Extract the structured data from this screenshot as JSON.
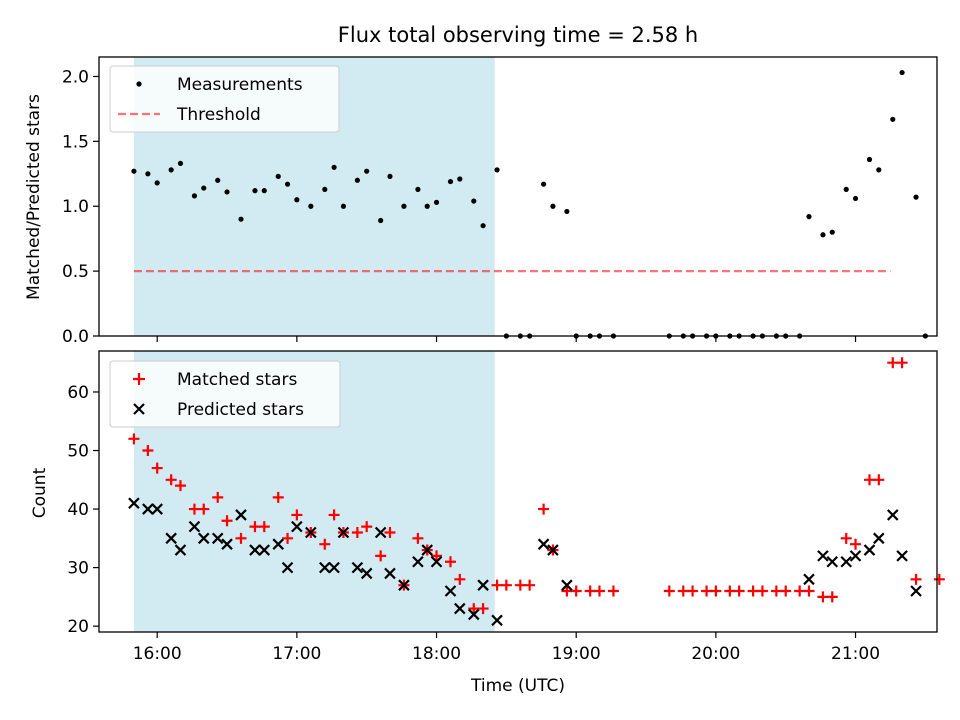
{
  "title": "Flux total observing time = 2.58 h",
  "colors": {
    "shade": "#add8e6",
    "threshold": "#ff0000",
    "matched": "#ff0000",
    "predicted": "#000000",
    "measurement": "#000000"
  },
  "chart_data": [
    {
      "type": "scatter",
      "ylabel": "Matched/Predicted stars",
      "ylim": [
        0,
        2.15
      ],
      "yticks": [
        "0.0",
        "0.5",
        "1.0",
        "1.5",
        "2.0"
      ],
      "xlim": [
        "15:35",
        "21:35"
      ],
      "shaded_interval": [
        "15:50",
        "18:25"
      ],
      "legend_placement": "upper left",
      "legend": {
        "measurements": "Measurements",
        "threshold": "Threshold"
      },
      "threshold": {
        "value": 0.5,
        "x": [
          "15:50",
          "21:15"
        ]
      },
      "series": [
        {
          "name": "Measurements",
          "points": [
            [
              "15:50",
              1.27
            ],
            [
              "15:56",
              1.25
            ],
            [
              "16:00",
              1.18
            ],
            [
              "16:06",
              1.28
            ],
            [
              "16:10",
              1.33
            ],
            [
              "16:16",
              1.08
            ],
            [
              "16:20",
              1.14
            ],
            [
              "16:26",
              1.2
            ],
            [
              "16:30",
              1.11
            ],
            [
              "16:36",
              0.9
            ],
            [
              "16:42",
              1.12
            ],
            [
              "16:46",
              1.12
            ],
            [
              "16:52",
              1.23
            ],
            [
              "16:56",
              1.17
            ],
            [
              "17:00",
              1.05
            ],
            [
              "17:06",
              1.0
            ],
            [
              "17:12",
              1.13
            ],
            [
              "17:16",
              1.3
            ],
            [
              "17:20",
              1.0
            ],
            [
              "17:26",
              1.2
            ],
            [
              "17:30",
              1.27
            ],
            [
              "17:36",
              0.89
            ],
            [
              "17:40",
              1.23
            ],
            [
              "17:46",
              1.0
            ],
            [
              "17:52",
              1.13
            ],
            [
              "17:56",
              1.0
            ],
            [
              "18:00",
              1.03
            ],
            [
              "18:06",
              1.19
            ],
            [
              "18:10",
              1.21
            ],
            [
              "18:16",
              1.04
            ],
            [
              "18:20",
              0.85
            ],
            [
              "18:26",
              1.28
            ],
            [
              "18:30",
              0
            ],
            [
              "18:36",
              0
            ],
            [
              "18:40",
              0
            ],
            [
              "18:46",
              1.17
            ],
            [
              "18:50",
              1.0
            ],
            [
              "18:56",
              0.96
            ],
            [
              "19:00",
              0
            ],
            [
              "19:06",
              0
            ],
            [
              "19:10",
              0
            ],
            [
              "19:16",
              0
            ],
            [
              "19:40",
              0
            ],
            [
              "19:46",
              0
            ],
            [
              "19:50",
              0
            ],
            [
              "19:56",
              0
            ],
            [
              "20:00",
              0
            ],
            [
              "20:06",
              0
            ],
            [
              "20:10",
              0
            ],
            [
              "20:16",
              0
            ],
            [
              "20:20",
              0
            ],
            [
              "20:26",
              0
            ],
            [
              "20:30",
              0
            ],
            [
              "20:36",
              0
            ],
            [
              "20:40",
              0.92
            ],
            [
              "20:46",
              0.78
            ],
            [
              "20:50",
              0.8
            ],
            [
              "20:56",
              1.13
            ],
            [
              "21:00",
              1.06
            ],
            [
              "21:06",
              1.36
            ],
            [
              "21:10",
              1.28
            ],
            [
              "21:16",
              1.67
            ],
            [
              "21:20",
              2.03
            ],
            [
              "21:26",
              1.07
            ],
            [
              "21:30",
              0
            ]
          ]
        }
      ]
    },
    {
      "type": "scatter",
      "xlabel": "Time (UTC)",
      "ylabel": "Count",
      "ylim": [
        19,
        67
      ],
      "yticks": [
        "20",
        "30",
        "40",
        "50",
        "60"
      ],
      "xticks": [
        "16:00",
        "17:00",
        "18:00",
        "19:00",
        "20:00",
        "21:00"
      ],
      "xlim": [
        "15:35",
        "21:35"
      ],
      "shaded_interval": [
        "15:50",
        "18:25"
      ],
      "legend_placement": "upper left",
      "legend": {
        "matched": "Matched stars",
        "predicted": "Predicted stars"
      },
      "series": [
        {
          "name": "Matched stars",
          "marker": "plus",
          "points": [
            [
              "15:50",
              52
            ],
            [
              "15:56",
              50
            ],
            [
              "16:00",
              47
            ],
            [
              "16:06",
              45
            ],
            [
              "16:10",
              44
            ],
            [
              "16:16",
              40
            ],
            [
              "16:20",
              40
            ],
            [
              "16:26",
              42
            ],
            [
              "16:30",
              38
            ],
            [
              "16:36",
              35
            ],
            [
              "16:42",
              37
            ],
            [
              "16:46",
              37
            ],
            [
              "16:52",
              42
            ],
            [
              "16:56",
              35
            ],
            [
              "17:00",
              39
            ],
            [
              "17:06",
              36
            ],
            [
              "17:12",
              34
            ],
            [
              "17:16",
              39
            ],
            [
              "17:20",
              36
            ],
            [
              "17:26",
              36
            ],
            [
              "17:30",
              37
            ],
            [
              "17:36",
              32
            ],
            [
              "17:40",
              36
            ],
            [
              "17:46",
              27
            ],
            [
              "17:52",
              35
            ],
            [
              "17:56",
              33
            ],
            [
              "18:00",
              32
            ],
            [
              "18:06",
              31
            ],
            [
              "18:10",
              28
            ],
            [
              "18:16",
              23
            ],
            [
              "18:20",
              23
            ],
            [
              "18:26",
              27
            ],
            [
              "18:30",
              27
            ],
            [
              "18:36",
              27
            ],
            [
              "18:40",
              27
            ],
            [
              "18:46",
              40
            ],
            [
              "18:50",
              33
            ],
            [
              "18:56",
              26
            ],
            [
              "19:00",
              26
            ],
            [
              "19:06",
              26
            ],
            [
              "19:10",
              26
            ],
            [
              "19:16",
              26
            ],
            [
              "19:40",
              26
            ],
            [
              "19:46",
              26
            ],
            [
              "19:50",
              26
            ],
            [
              "19:56",
              26
            ],
            [
              "20:00",
              26
            ],
            [
              "20:06",
              26
            ],
            [
              "20:10",
              26
            ],
            [
              "20:16",
              26
            ],
            [
              "20:20",
              26
            ],
            [
              "20:26",
              26
            ],
            [
              "20:30",
              26
            ],
            [
              "20:36",
              26
            ],
            [
              "20:40",
              26
            ],
            [
              "20:46",
              25
            ],
            [
              "20:50",
              25
            ],
            [
              "20:56",
              35
            ],
            [
              "21:00",
              34
            ],
            [
              "21:06",
              45
            ],
            [
              "21:10",
              45
            ],
            [
              "21:16",
              65
            ],
            [
              "21:20",
              65
            ],
            [
              "21:26",
              28
            ],
            [
              "21:36",
              28
            ]
          ]
        },
        {
          "name": "Predicted stars",
          "marker": "x",
          "points": [
            [
              "15:50",
              41
            ],
            [
              "15:56",
              40
            ],
            [
              "16:00",
              40
            ],
            [
              "16:06",
              35
            ],
            [
              "16:10",
              33
            ],
            [
              "16:16",
              37
            ],
            [
              "16:20",
              35
            ],
            [
              "16:26",
              35
            ],
            [
              "16:30",
              34
            ],
            [
              "16:36",
              39
            ],
            [
              "16:42",
              33
            ],
            [
              "16:46",
              33
            ],
            [
              "16:52",
              34
            ],
            [
              "16:56",
              30
            ],
            [
              "17:00",
              37
            ],
            [
              "17:06",
              36
            ],
            [
              "17:12",
              30
            ],
            [
              "17:16",
              30
            ],
            [
              "17:20",
              36
            ],
            [
              "17:26",
              30
            ],
            [
              "17:30",
              29
            ],
            [
              "17:36",
              36
            ],
            [
              "17:40",
              29
            ],
            [
              "17:46",
              27
            ],
            [
              "17:52",
              31
            ],
            [
              "17:56",
              33
            ],
            [
              "18:00",
              31
            ],
            [
              "18:06",
              26
            ],
            [
              "18:10",
              23
            ],
            [
              "18:16",
              22
            ],
            [
              "18:20",
              27
            ],
            [
              "18:26",
              21
            ],
            [
              "18:46",
              34
            ],
            [
              "18:50",
              33
            ],
            [
              "18:56",
              27
            ],
            [
              "20:40",
              28
            ],
            [
              "20:46",
              32
            ],
            [
              "20:50",
              31
            ],
            [
              "20:56",
              31
            ],
            [
              "21:00",
              32
            ],
            [
              "21:06",
              33
            ],
            [
              "21:10",
              35
            ],
            [
              "21:16",
              39
            ],
            [
              "21:20",
              32
            ],
            [
              "21:26",
              26
            ]
          ]
        }
      ]
    }
  ]
}
